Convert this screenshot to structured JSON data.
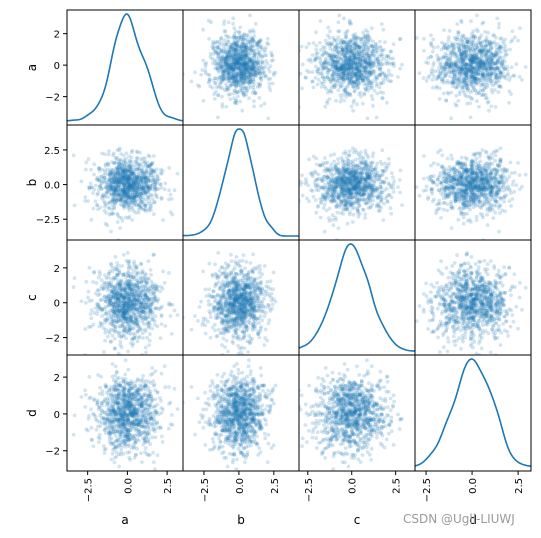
{
  "chart_data": {
    "type": "scatter_matrix",
    "variables": [
      "a",
      "b",
      "c",
      "d"
    ],
    "n_points": 1000,
    "diagonal": "kde",
    "alpha": 0.2,
    "color": "#1f77b4",
    "panels": [
      {
        "row": "a",
        "col": "a",
        "kind": "kde",
        "xlim": [
          -3.8,
          3.5
        ],
        "ylim": [
          -3.6,
          3.1
        ],
        "yticks": [
          -2,
          0,
          2
        ]
      },
      {
        "row": "b",
        "col": "b",
        "kind": "kde",
        "xlim": [
          -4.0,
          4.3
        ],
        "ylim": [
          -3.8,
          4.4
        ],
        "yticks": [
          -2.5,
          0.0,
          2.5
        ]
      },
      {
        "row": "c",
        "col": "c",
        "kind": "kde",
        "xlim": [
          -3.0,
          3.5
        ],
        "ylim": [
          -3.0,
          3.6
        ],
        "yticks": [
          -2,
          0,
          2
        ]
      },
      {
        "row": "d",
        "col": "d",
        "kind": "kde",
        "xlim": [
          -3.1,
          3.2
        ],
        "ylim": [
          -3.1,
          3.2
        ],
        "yticks": [
          -2,
          0,
          2
        ]
      }
    ],
    "axis_ranges": {
      "a": [
        -3.8,
        3.5
      ],
      "b": [
        -4.0,
        4.3
      ],
      "c": [
        -3.0,
        3.6
      ],
      "d": [
        -3.1,
        3.2
      ]
    },
    "xticks_bottom": {
      "a": [
        -2.5,
        0.0,
        2.5
      ],
      "b": [
        -2.5,
        0.0,
        2.5
      ],
      "c": [
        -2.5,
        0.0,
        2.5
      ],
      "d": [
        -2.5,
        0.0,
        2.5
      ]
    },
    "grid": false,
    "legend": "none"
  },
  "labels": {
    "rows": [
      "a",
      "b",
      "c",
      "d"
    ],
    "cols": [
      "a",
      "b",
      "c",
      "d"
    ]
  },
  "watermark": "CSDN @Ugli-LIUWJ"
}
